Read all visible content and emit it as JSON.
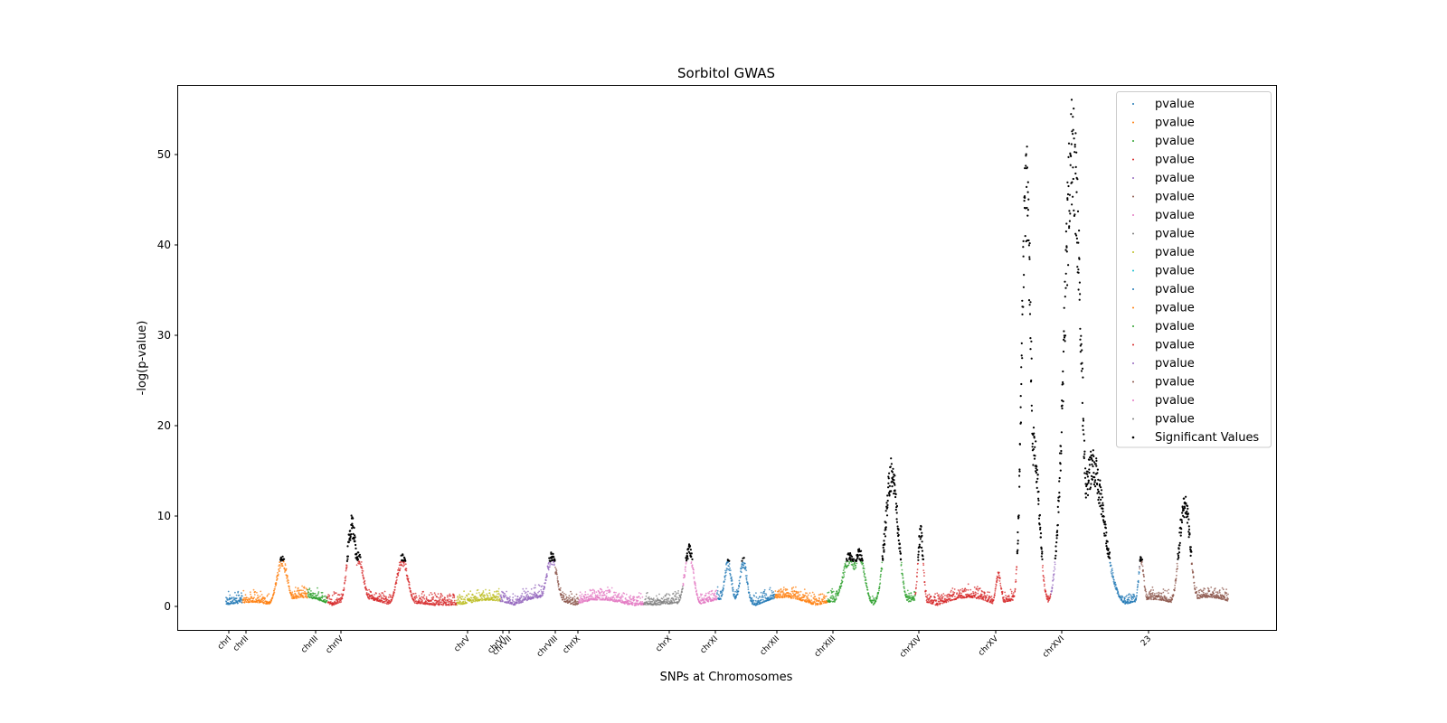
{
  "chart_data": {
    "type": "scatter",
    "title": "Sorbitol GWAS",
    "xlabel": "SNPs at Chromosomes",
    "ylabel": "-log(p-value)",
    "ylim": [
      -2.6,
      57.6
    ],
    "yticks": [
      0,
      10,
      20,
      30,
      40,
      50
    ],
    "significance_threshold": 5,
    "legend_position": "top-right",
    "chromosome_ticks": [
      "chrI",
      "chrII",
      "chrIII",
      "chrIV",
      "chrV",
      "chrVI",
      "chrVII",
      "chrVIII",
      "chrIX",
      "chrX",
      "chrXI",
      "chrXII",
      "chrXIII",
      "chrXIV",
      "chrXV",
      "chrXVI",
      "23"
    ],
    "series": [
      {
        "name": "pvalue",
        "color": "#1f77b4"
      },
      {
        "name": "pvalue",
        "color": "#ff7f0e"
      },
      {
        "name": "pvalue",
        "color": "#2ca02c"
      },
      {
        "name": "pvalue",
        "color": "#d62728"
      },
      {
        "name": "pvalue",
        "color": "#d62728"
      },
      {
        "name": "pvalue",
        "color": "#bcbd22"
      },
      {
        "name": "pvalue",
        "color": "#9467bd"
      },
      {
        "name": "pvalue",
        "color": "#9467bd"
      },
      {
        "name": "pvalue",
        "color": "#8c564b"
      },
      {
        "name": "pvalue",
        "color": "#e377c2"
      },
      {
        "name": "pvalue",
        "color": "#7f7f7f"
      },
      {
        "name": "pvalue",
        "color": "#e377c2"
      },
      {
        "name": "pvalue",
        "color": "#1f77b4"
      },
      {
        "name": "pvalue",
        "color": "#ff7f0e"
      },
      {
        "name": "pvalue",
        "color": "#2ca02c"
      },
      {
        "name": "pvalue",
        "color": "#d62728"
      },
      {
        "name": "pvalue",
        "color": "#9467bd"
      },
      {
        "name": "pvalue",
        "color": "#8c564b"
      }
    ],
    "significant_series": {
      "name": "Significant Values",
      "color": "#000000"
    },
    "legend_entries": [
      {
        "label": "pvalue",
        "color": "#1f77b4"
      },
      {
        "label": "pvalue",
        "color": "#ff7f0e"
      },
      {
        "label": "pvalue",
        "color": "#2ca02c"
      },
      {
        "label": "pvalue",
        "color": "#d62728"
      },
      {
        "label": "pvalue",
        "color": "#9467bd"
      },
      {
        "label": "pvalue",
        "color": "#8c564b"
      },
      {
        "label": "pvalue",
        "color": "#e377c2"
      },
      {
        "label": "pvalue",
        "color": "#7f7f7f"
      },
      {
        "label": "pvalue",
        "color": "#bcbd22"
      },
      {
        "label": "pvalue",
        "color": "#17becf"
      },
      {
        "label": "pvalue",
        "color": "#1f77b4"
      },
      {
        "label": "pvalue",
        "color": "#ff7f0e"
      },
      {
        "label": "pvalue",
        "color": "#2ca02c"
      },
      {
        "label": "pvalue",
        "color": "#d62728"
      },
      {
        "label": "pvalue",
        "color": "#9467bd"
      },
      {
        "label": "pvalue",
        "color": "#8c564b"
      },
      {
        "label": "pvalue",
        "color": "#e377c2"
      },
      {
        "label": "pvalue",
        "color": "#7f7f7f"
      },
      {
        "label": "Significant Values",
        "color": "#000000"
      }
    ],
    "peaks": [
      {
        "chromosome": "chrII",
        "max_log_p": 5.9
      },
      {
        "chromosome": "chrIV",
        "max_log_p": 10.0
      },
      {
        "chromosome": "chrIV",
        "max_log_p": 6.2
      },
      {
        "chromosome": "chrVIII",
        "max_log_p": 6.3
      },
      {
        "chromosome": "chrX",
        "max_log_p": 7.6
      },
      {
        "chromosome": "chrXIII",
        "max_log_p": 7.0
      },
      {
        "chromosome": "chrXIII",
        "max_log_p": 16.0
      },
      {
        "chromosome": "chrXIV",
        "max_log_p": 9.0
      },
      {
        "chromosome": "chrXV",
        "max_log_p": 51.2
      },
      {
        "chromosome": "chrXVI",
        "max_log_p": 54.7
      },
      {
        "chromosome": "chrXVI",
        "max_log_p": 19.6
      },
      {
        "chromosome": "23",
        "max_log_p": 13.0
      }
    ]
  }
}
